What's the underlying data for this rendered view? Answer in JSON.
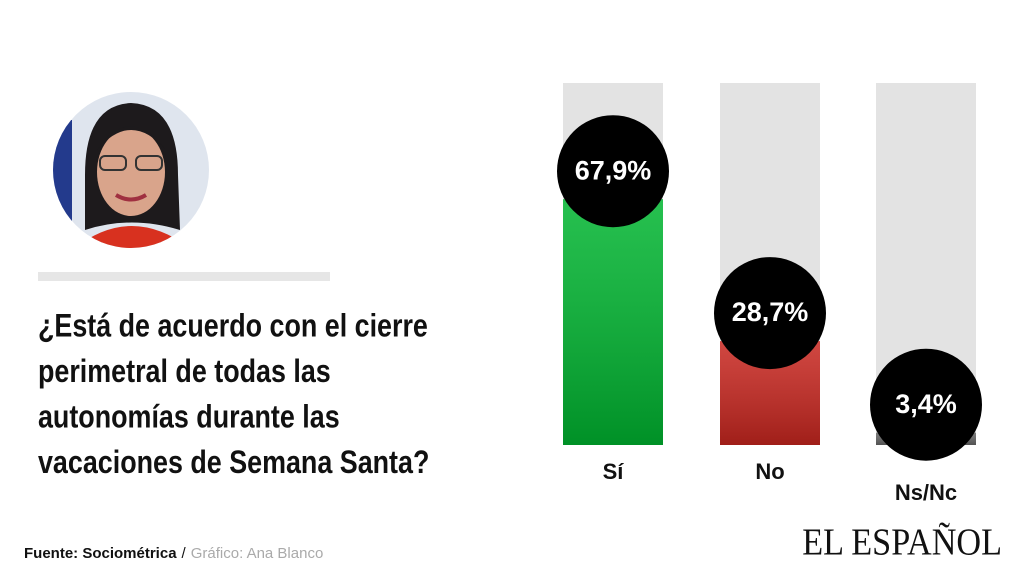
{
  "chart_data": {
    "type": "bar",
    "question_lines": [
      "¿Está de acuerdo con el cierre",
      "perimetral de todas las",
      "autonomías durante las",
      "vacaciones de Semana Santa?"
    ],
    "categories": [
      "Sí",
      "No",
      "Ns/Nc"
    ],
    "values": [
      67.9,
      28.7,
      3.4
    ],
    "value_labels": [
      "67,9%",
      "28,7%",
      "3,4%"
    ],
    "colors": [
      "#00b530",
      "#c8261f",
      "#666666"
    ],
    "ylim": [
      0,
      100
    ],
    "source_label": "Fuente: Sociométrica",
    "separator": "/",
    "credit": "Gráfico: Ana Blanco",
    "logo": "EL ESPAÑOL"
  }
}
